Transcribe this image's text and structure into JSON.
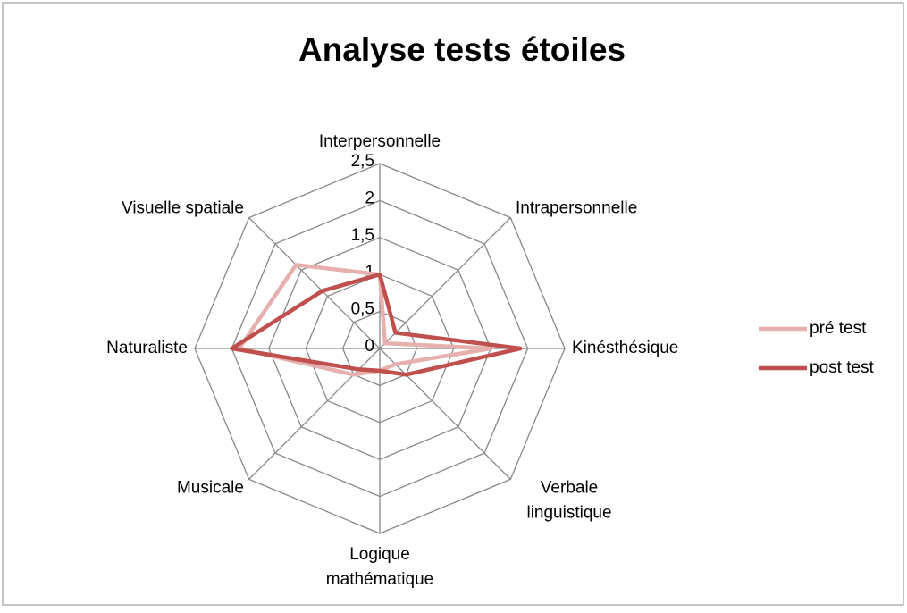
{
  "chart_data": {
    "type": "radar",
    "title": "Analyse tests étoiles",
    "categories": [
      "Interpersonnelle",
      "Intrapersonnelle",
      "Kinésthésique",
      "Verbale linguistique",
      "Logique mathématique",
      "Musicale",
      "Naturaliste",
      "Visuelle spatiale"
    ],
    "series": [
      {
        "name": "pré test",
        "color": "#e6b0ae",
        "values": [
          1,
          0.1,
          1.5,
          0.3,
          0.3,
          0.5,
          1.9,
          1.6
        ]
      },
      {
        "name": "post test",
        "color": "#c0504d",
        "values": [
          1,
          0.3,
          1.9,
          0.5,
          0.3,
          0.4,
          2,
          1.1
        ]
      }
    ],
    "ylim": [
      0,
      2.5
    ],
    "yticks": [
      0,
      {
        "value": 0.5,
        "label": "0,5"
      },
      1,
      {
        "value": 1.5,
        "label": "1,5"
      },
      2,
      {
        "value": 2.5,
        "label": "2,5"
      }
    ],
    "legend": "right"
  }
}
